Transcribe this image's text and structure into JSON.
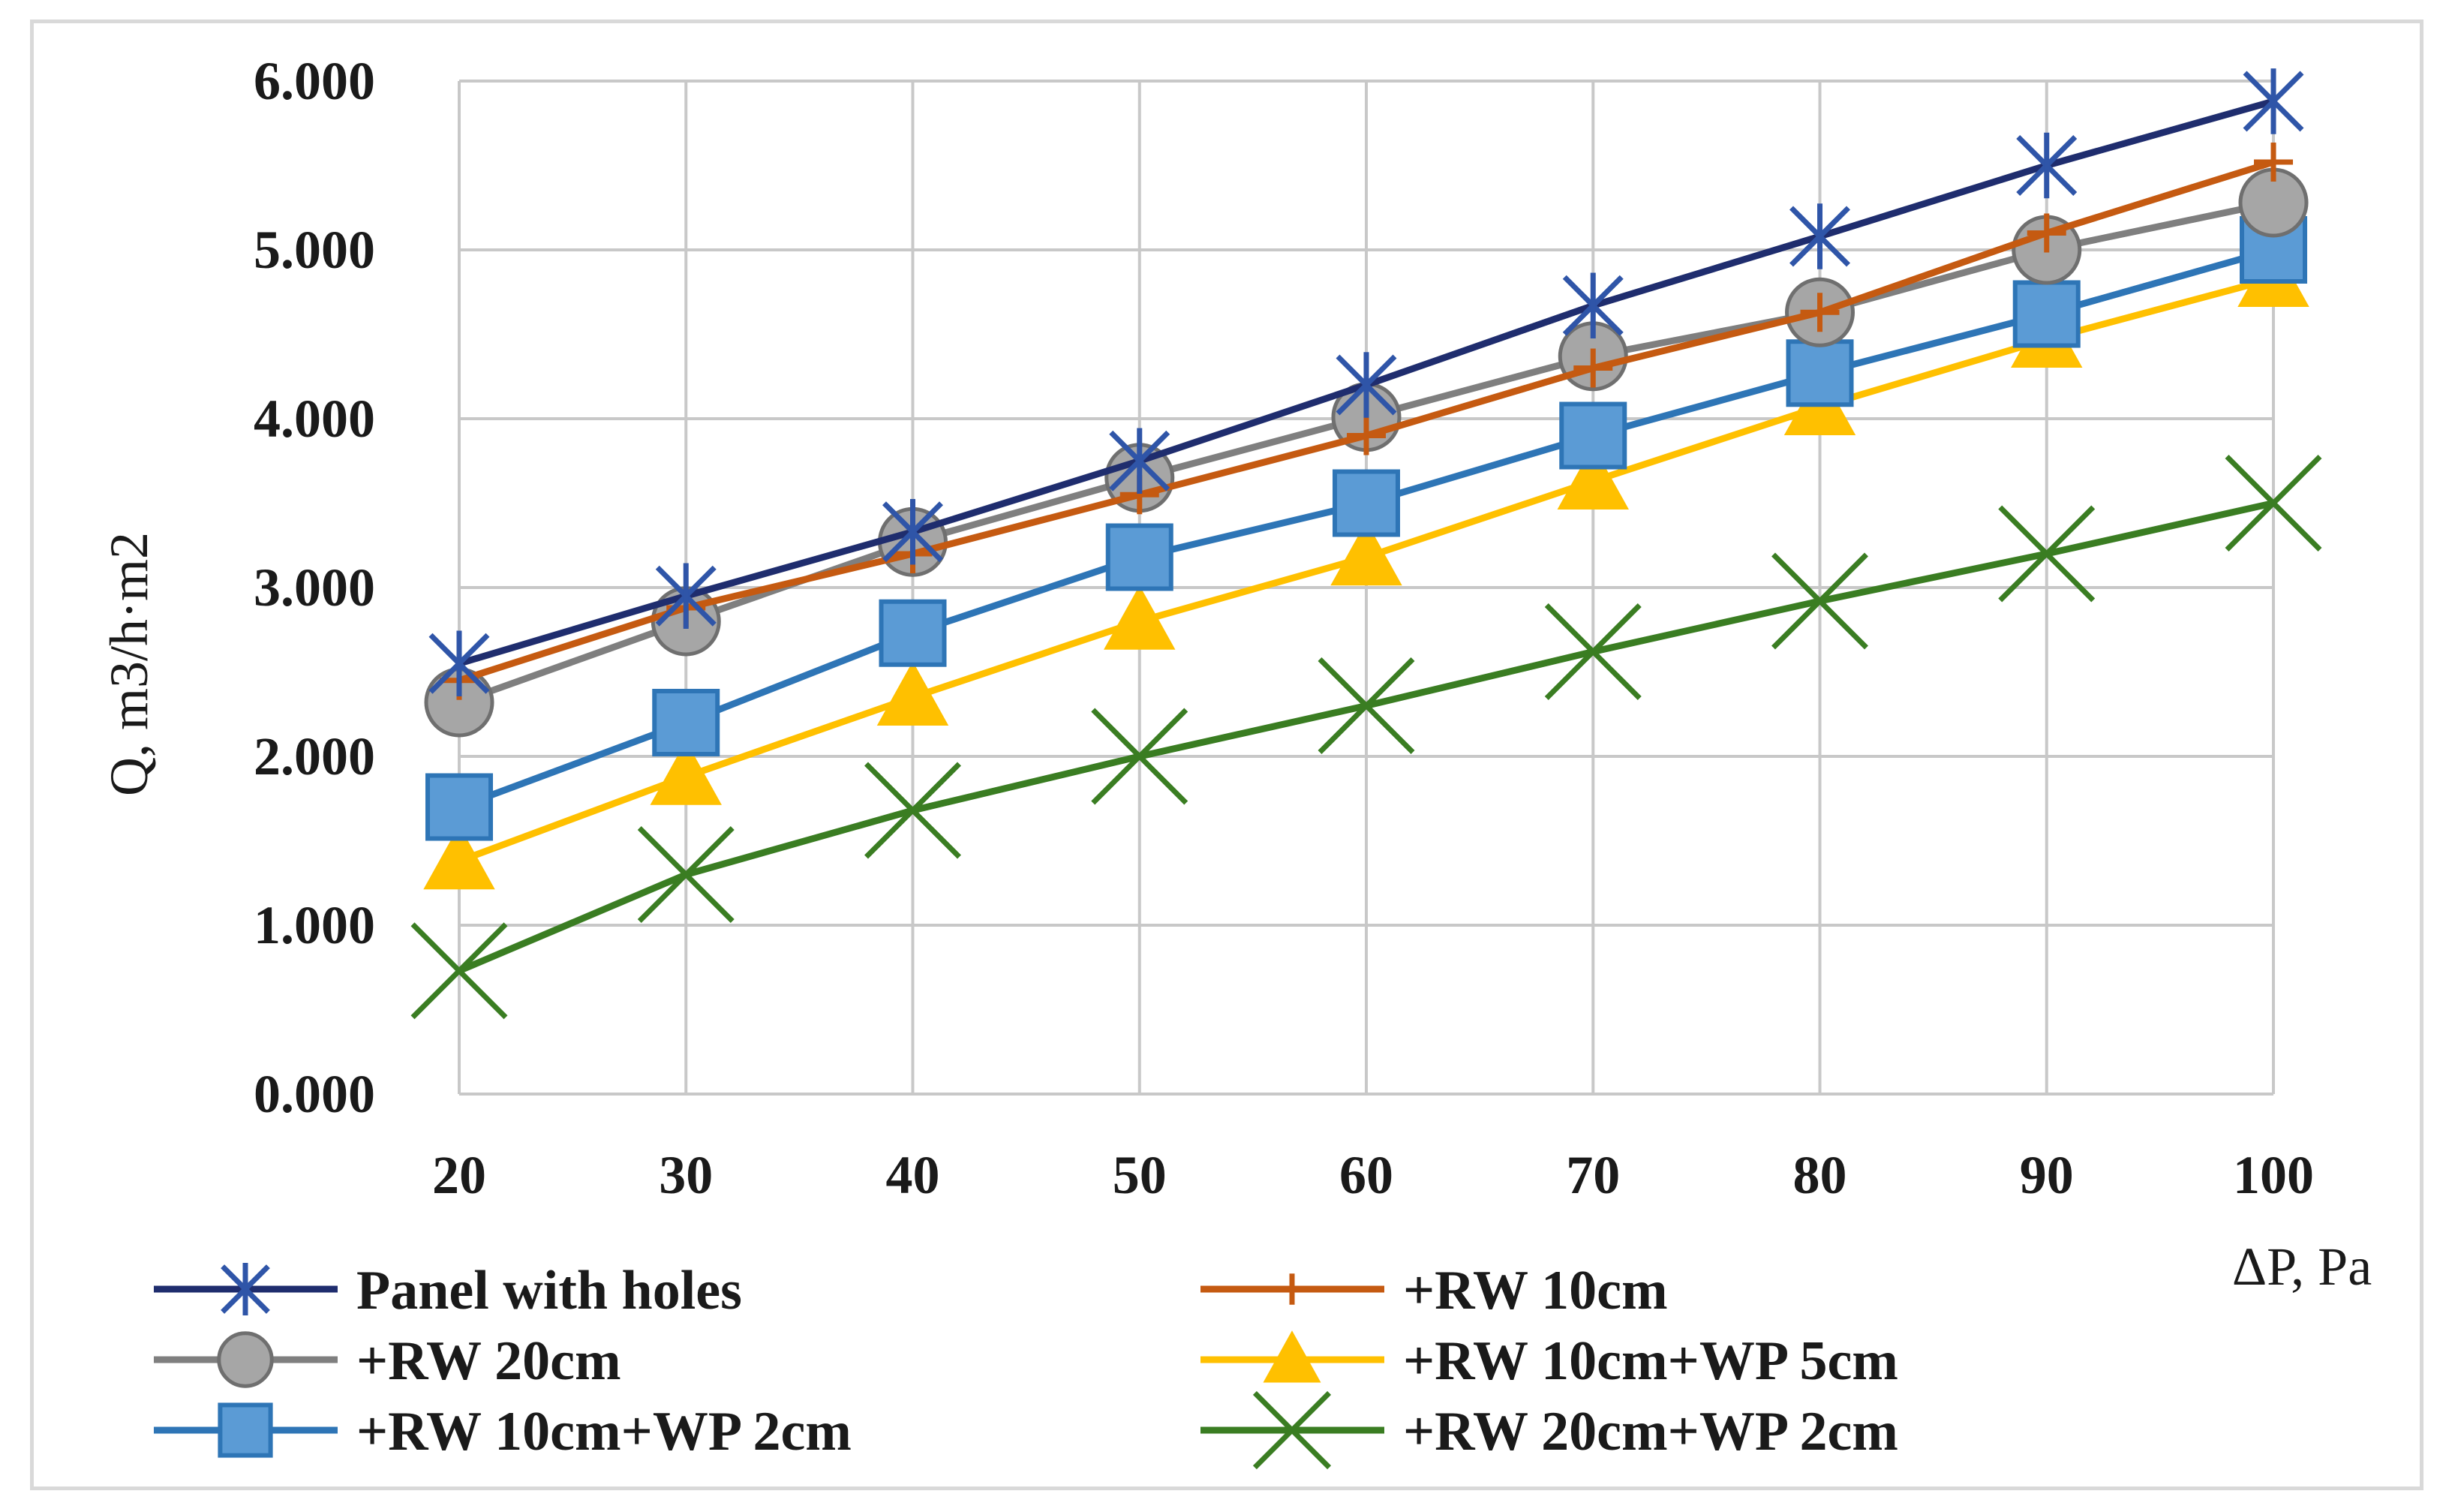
{
  "chart_data": {
    "type": "line",
    "title": "",
    "xlabel": "ΔP, Pa",
    "ylabel": "Q, m3/h·m2",
    "x": [
      20,
      30,
      40,
      50,
      60,
      70,
      80,
      90,
      100
    ],
    "xlim": [
      20,
      100
    ],
    "ylim": [
      0,
      6
    ],
    "yticks": [
      "0.000",
      "1.000",
      "2.000",
      "3.000",
      "4.000",
      "5.000",
      "6.000"
    ],
    "xticks": [
      "20",
      "30",
      "40",
      "50",
      "60",
      "70",
      "80",
      "90",
      "100"
    ],
    "grid": true,
    "legend_position": "bottom",
    "series": [
      {
        "name": "Panel with holes",
        "color": "#1f2d6e",
        "marker": "star",
        "values": [
          2.55,
          2.95,
          3.33,
          3.75,
          4.2,
          4.67,
          5.08,
          5.5,
          5.88
        ]
      },
      {
        "name": "+RW 10cm",
        "color": "#c55a11",
        "marker": "plus",
        "values": [
          2.45,
          2.88,
          3.2,
          3.55,
          3.9,
          4.3,
          4.63,
          5.1,
          5.52
        ]
      },
      {
        "name": "+RW 20cm",
        "color": "#7f7f7f",
        "marker": "circle",
        "values": [
          2.32,
          2.8,
          3.27,
          3.65,
          4.01,
          4.37,
          4.63,
          5.0,
          5.28
        ]
      },
      {
        "name": "+RW 10cm+WP 5cm",
        "color": "#ffc000",
        "marker": "triangle",
        "values": [
          1.38,
          1.88,
          2.35,
          2.8,
          3.18,
          3.63,
          4.07,
          4.47,
          4.83
        ]
      },
      {
        "name": "+RW 10cm+WP 2cm",
        "color": "#2e75b6",
        "marker_fill": "#5b9bd5",
        "marker": "square",
        "values": [
          1.7,
          2.2,
          2.73,
          3.18,
          3.5,
          3.9,
          4.27,
          4.62,
          5.0
        ]
      },
      {
        "name": "+RW 20cm+WP 2cm",
        "color": "#3a7d22",
        "marker": "x",
        "values": [
          0.73,
          1.3,
          1.68,
          2.0,
          2.3,
          2.62,
          2.92,
          3.2,
          3.5
        ]
      }
    ]
  }
}
